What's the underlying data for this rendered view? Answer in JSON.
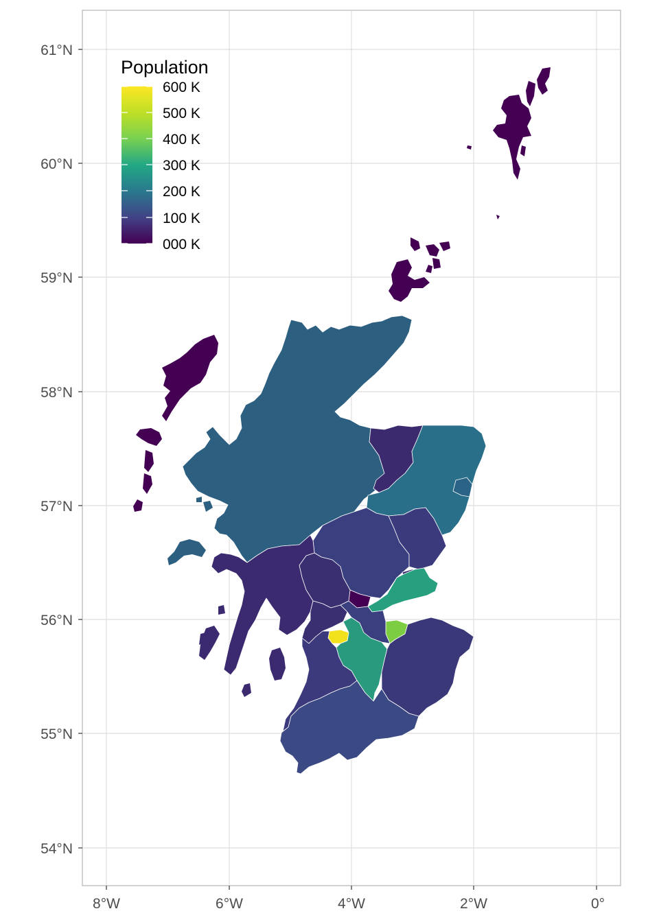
{
  "map": {
    "legend": {
      "title": "Population",
      "labels": [
        "600 K",
        "500 K",
        "400 K",
        "300 K",
        "200 K",
        "100 K",
        "000 K"
      ],
      "colors": [
        "#fde725",
        "#7ad151",
        "#22a884",
        "#2a788e",
        "#414487",
        "#440154"
      ]
    },
    "axes": {
      "lat_labels": [
        "61°N",
        "60°N",
        "59°N",
        "58°N",
        "57°N",
        "56°N",
        "55°N",
        "54°N"
      ],
      "lon_labels": [
        "8°W",
        "6°W",
        "4°W",
        "2°W",
        "0°"
      ]
    },
    "region_colors": {
      "highland": "#2d5f80",
      "islands": "#440154",
      "moray": "#3b2a6e",
      "aberdeenshire": "#2a6f8a",
      "aberdeen_city": "#2b6386",
      "perth": "#3a3f80",
      "angus": "#3b3a7c",
      "dundee": "#3b2f72",
      "fife": "#26a07e",
      "edinburgh": "#7ccd42",
      "glasgow": "#f2e11d",
      "lanarkshire": "#2a9a7f",
      "central": "#3a2f70",
      "clackmannan": "#440154",
      "argyll": "#3b2a70",
      "southwest": "#3c3a7c",
      "borders": "#3a3878",
      "dumfries": "#3b4a84"
    }
  }
}
